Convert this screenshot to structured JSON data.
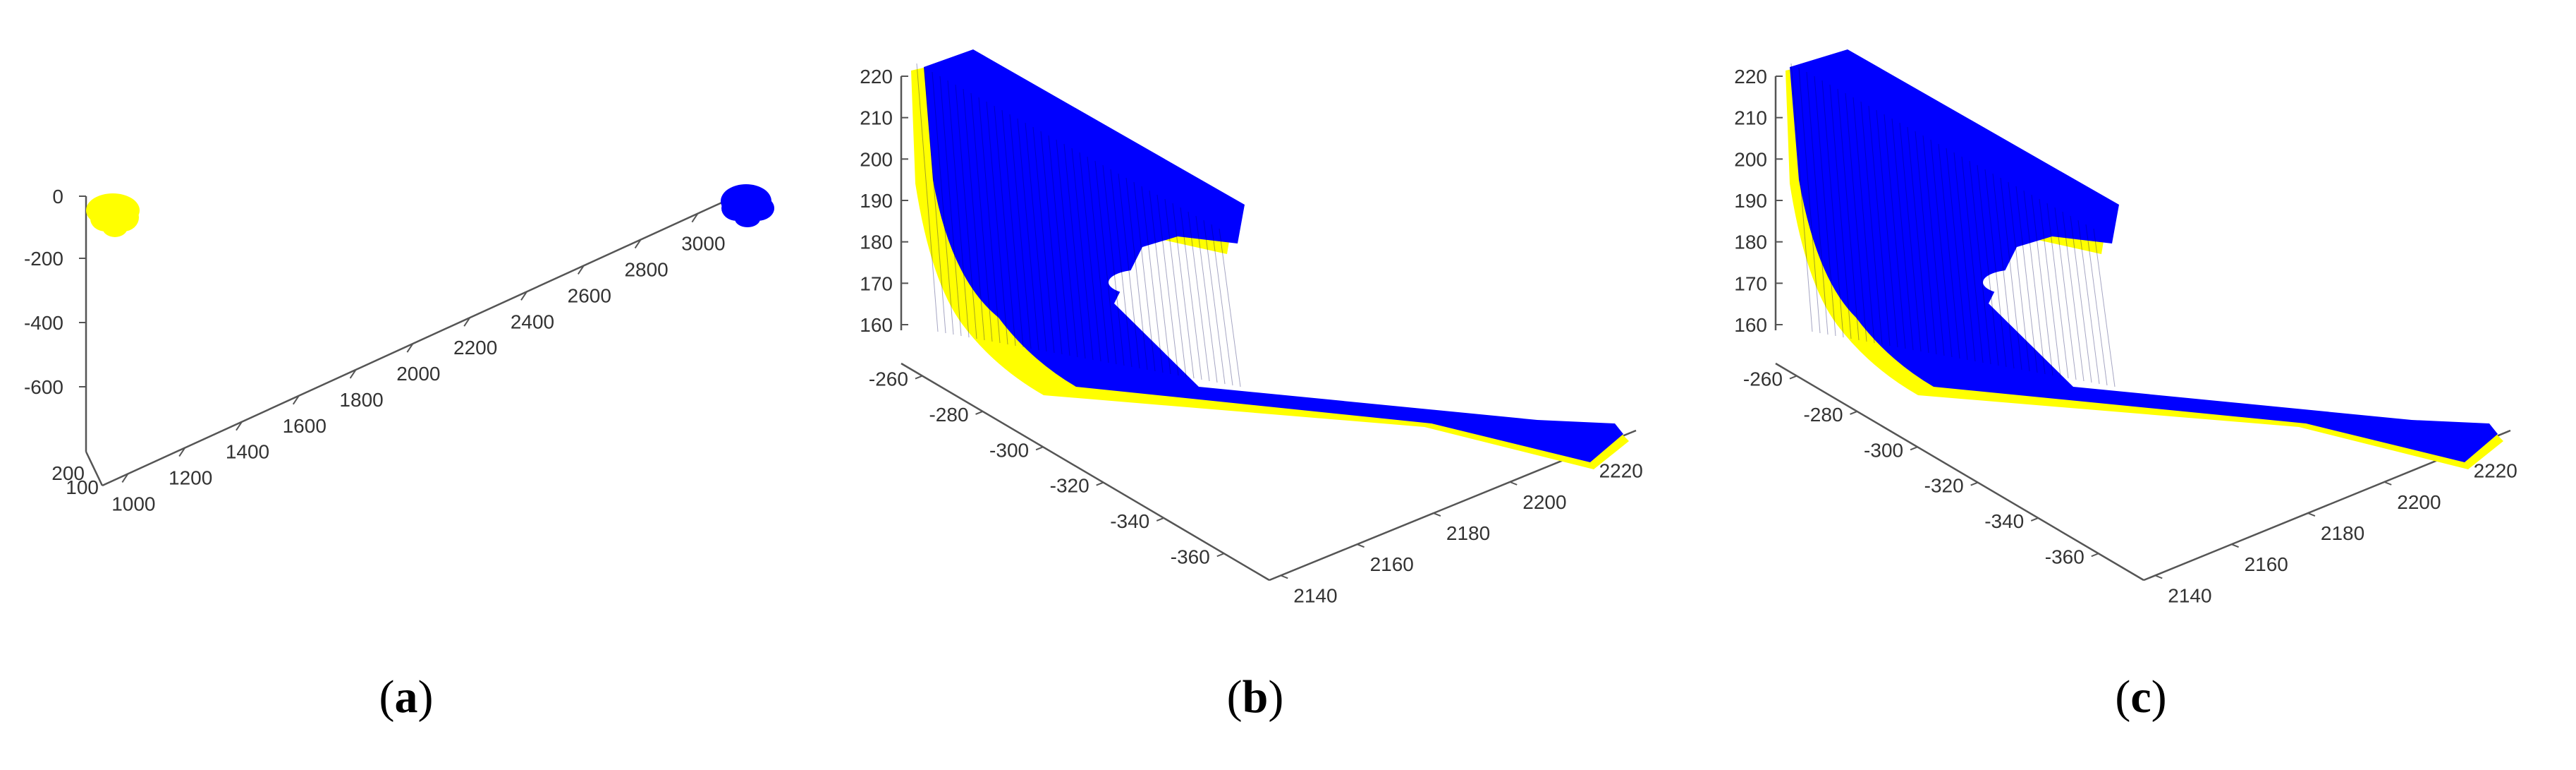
{
  "colors": {
    "source": "#ffff00",
    "target": "#0000ff",
    "axis": "#555555"
  },
  "chart_data": [
    {
      "type": "scatter",
      "panel_label": "a",
      "z_ticks": [
        "0",
        "-200",
        "-400",
        "-600"
      ],
      "y_ticks": [
        "200",
        "100"
      ],
      "x_ticks": [
        "1000",
        "1200",
        "1400",
        "1600",
        "1800",
        "2000",
        "2200",
        "2400",
        "2600",
        "2800",
        "3000"
      ],
      "series": [
        {
          "color": "yellow",
          "x_center": 850,
          "y_center": 150,
          "z_center": -20
        },
        {
          "color": "blue",
          "x_center": 3000,
          "y_center": 150,
          "z_center": -20
        }
      ]
    },
    {
      "type": "scatter",
      "panel_label": "b",
      "z_ticks": [
        "220",
        "210",
        "200",
        "190",
        "180",
        "170",
        "160"
      ],
      "y_ticks": [
        "-260",
        "-280",
        "-300",
        "-320",
        "-340",
        "-360"
      ],
      "x_ticks": [
        "2140",
        "2160",
        "2180",
        "2200",
        "2220"
      ],
      "series": [
        {
          "color": "yellow"
        },
        {
          "color": "blue"
        }
      ]
    },
    {
      "type": "scatter",
      "panel_label": "c",
      "z_ticks": [
        "220",
        "210",
        "200",
        "190",
        "180",
        "170",
        "160"
      ],
      "y_ticks": [
        "-260",
        "-280",
        "-300",
        "-320",
        "-340",
        "-360"
      ],
      "x_ticks": [
        "2140",
        "2160",
        "2180",
        "2200",
        "2220"
      ],
      "series": [
        {
          "color": "yellow"
        },
        {
          "color": "blue"
        }
      ]
    }
  ],
  "captions": [
    {
      "open": "(",
      "letter": "a",
      "close": ")"
    },
    {
      "open": "(",
      "letter": "b",
      "close": ")"
    },
    {
      "open": "(",
      "letter": "c",
      "close": ")"
    }
  ]
}
